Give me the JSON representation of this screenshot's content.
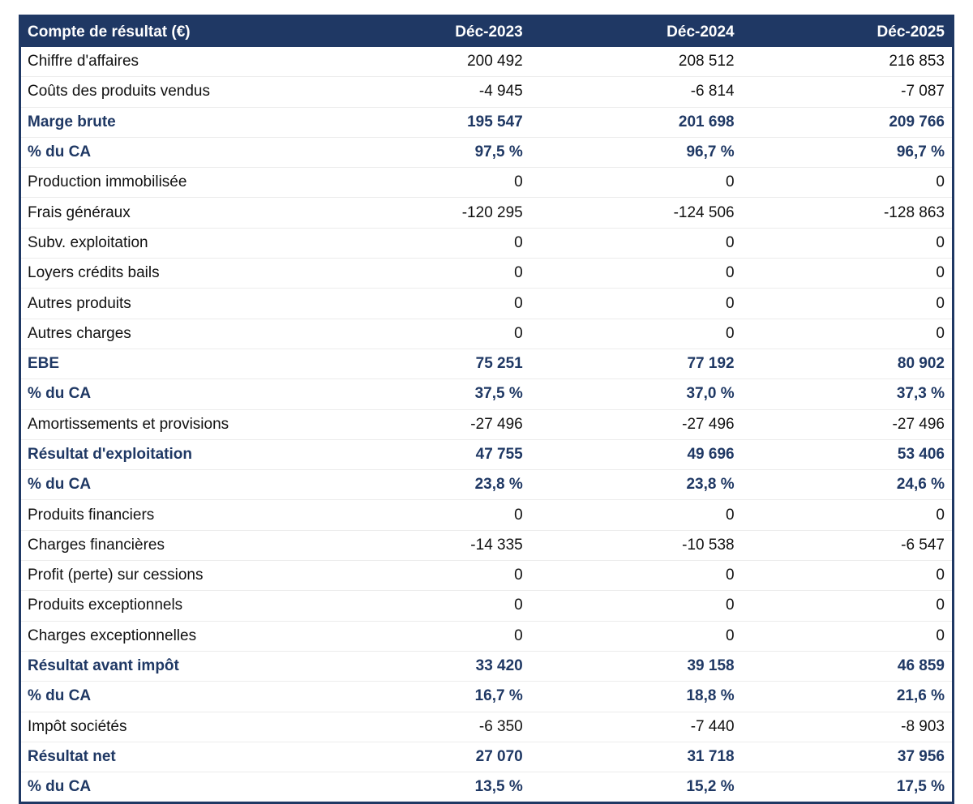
{
  "colors": {
    "header_bg": "#1F3864",
    "header_text": "#FFFFFF",
    "emphasis_text": "#1F3864",
    "body_text": "#111111",
    "table_border": "#1F3864"
  },
  "table": {
    "title": "Compte de résultat (€)",
    "columns": [
      "Déc-2023",
      "Déc-2024",
      "Déc-2025"
    ],
    "rows": [
      {
        "label": "Chiffre d'affaires",
        "values": [
          "200 492",
          "208 512",
          "216 853"
        ],
        "emphasis": false
      },
      {
        "label": "Coûts des produits vendus",
        "values": [
          "-4 945",
          "-6 814",
          "-7 087"
        ],
        "emphasis": false
      },
      {
        "label": "Marge brute",
        "values": [
          "195 547",
          "201 698",
          "209 766"
        ],
        "emphasis": true
      },
      {
        "label": "% du CA",
        "values": [
          "97,5 %",
          "96,7 %",
          "96,7 %"
        ],
        "emphasis": true
      },
      {
        "label": "Production immobilisée",
        "values": [
          "0",
          "0",
          "0"
        ],
        "emphasis": false
      },
      {
        "label": "Frais généraux",
        "values": [
          "-120 295",
          "-124 506",
          "-128 863"
        ],
        "emphasis": false
      },
      {
        "label": "Subv. exploitation",
        "values": [
          "0",
          "0",
          "0"
        ],
        "emphasis": false
      },
      {
        "label": "Loyers crédits bails",
        "values": [
          "0",
          "0",
          "0"
        ],
        "emphasis": false
      },
      {
        "label": "Autres produits",
        "values": [
          "0",
          "0",
          "0"
        ],
        "emphasis": false
      },
      {
        "label": "Autres charges",
        "values": [
          "0",
          "0",
          "0"
        ],
        "emphasis": false
      },
      {
        "label": "EBE",
        "values": [
          "75 251",
          "77 192",
          "80 902"
        ],
        "emphasis": true
      },
      {
        "label": "% du CA",
        "values": [
          "37,5 %",
          "37,0 %",
          "37,3 %"
        ],
        "emphasis": true
      },
      {
        "label": "Amortissements et provisions",
        "values": [
          "-27 496",
          "-27 496",
          "-27 496"
        ],
        "emphasis": false
      },
      {
        "label": "Résultat d'exploitation",
        "values": [
          "47 755",
          "49 696",
          "53 406"
        ],
        "emphasis": true
      },
      {
        "label": "% du CA",
        "values": [
          "23,8 %",
          "23,8 %",
          "24,6 %"
        ],
        "emphasis": true
      },
      {
        "label": "Produits financiers",
        "values": [
          "0",
          "0",
          "0"
        ],
        "emphasis": false
      },
      {
        "label": "Charges financières",
        "values": [
          "-14 335",
          "-10 538",
          "-6 547"
        ],
        "emphasis": false
      },
      {
        "label": "Profit (perte) sur cessions",
        "values": [
          "0",
          "0",
          "0"
        ],
        "emphasis": false
      },
      {
        "label": "Produits exceptionnels",
        "values": [
          "0",
          "0",
          "0"
        ],
        "emphasis": false
      },
      {
        "label": "Charges exceptionnelles",
        "values": [
          "0",
          "0",
          "0"
        ],
        "emphasis": false
      },
      {
        "label": "Résultat avant impôt",
        "values": [
          "33 420",
          "39 158",
          "46 859"
        ],
        "emphasis": true
      },
      {
        "label": "% du CA",
        "values": [
          "16,7 %",
          "18,8 %",
          "21,6 %"
        ],
        "emphasis": true
      },
      {
        "label": "Impôt sociétés",
        "values": [
          "-6 350",
          "-7 440",
          "-8 903"
        ],
        "emphasis": false
      },
      {
        "label": "Résultat net",
        "values": [
          "27 070",
          "31 718",
          "37 956"
        ],
        "emphasis": true
      },
      {
        "label": "% du CA",
        "values": [
          "13,5 %",
          "15,2 %",
          "17,5 %"
        ],
        "emphasis": true
      }
    ]
  },
  "chart_data": {
    "type": "table",
    "title": "Compte de résultat (€)",
    "columns": [
      "Déc-2023",
      "Déc-2024",
      "Déc-2025"
    ],
    "rows": [
      {
        "label": "Chiffre d'affaires",
        "values": [
          200492,
          208512,
          216853
        ]
      },
      {
        "label": "Coûts des produits vendus",
        "values": [
          -4945,
          -6814,
          -7087
        ]
      },
      {
        "label": "Marge brute",
        "values": [
          195547,
          201698,
          209766
        ]
      },
      {
        "label": "% du CA (marge brute)",
        "unit": "%",
        "values": [
          97.5,
          96.7,
          96.7
        ]
      },
      {
        "label": "Production immobilisée",
        "values": [
          0,
          0,
          0
        ]
      },
      {
        "label": "Frais généraux",
        "values": [
          -120295,
          -124506,
          -128863
        ]
      },
      {
        "label": "Subv. exploitation",
        "values": [
          0,
          0,
          0
        ]
      },
      {
        "label": "Loyers crédits bails",
        "values": [
          0,
          0,
          0
        ]
      },
      {
        "label": "Autres produits",
        "values": [
          0,
          0,
          0
        ]
      },
      {
        "label": "Autres charges",
        "values": [
          0,
          0,
          0
        ]
      },
      {
        "label": "EBE",
        "values": [
          75251,
          77192,
          80902
        ]
      },
      {
        "label": "% du CA (EBE)",
        "unit": "%",
        "values": [
          37.5,
          37.0,
          37.3
        ]
      },
      {
        "label": "Amortissements et provisions",
        "values": [
          -27496,
          -27496,
          -27496
        ]
      },
      {
        "label": "Résultat d'exploitation",
        "values": [
          47755,
          49696,
          53406
        ]
      },
      {
        "label": "% du CA (résultat d'exploitation)",
        "unit": "%",
        "values": [
          23.8,
          23.8,
          24.6
        ]
      },
      {
        "label": "Produits financiers",
        "values": [
          0,
          0,
          0
        ]
      },
      {
        "label": "Charges financières",
        "values": [
          -14335,
          -10538,
          -6547
        ]
      },
      {
        "label": "Profit (perte) sur cessions",
        "values": [
          0,
          0,
          0
        ]
      },
      {
        "label": "Produits exceptionnels",
        "values": [
          0,
          0,
          0
        ]
      },
      {
        "label": "Charges exceptionnelles",
        "values": [
          0,
          0,
          0
        ]
      },
      {
        "label": "Résultat avant impôt",
        "values": [
          33420,
          39158,
          46859
        ]
      },
      {
        "label": "% du CA (résultat avant impôt)",
        "unit": "%",
        "values": [
          16.7,
          18.8,
          21.6
        ]
      },
      {
        "label": "Impôt sociétés",
        "values": [
          -6350,
          -7440,
          -8903
        ]
      },
      {
        "label": "Résultat net",
        "values": [
          27070,
          31718,
          37956
        ]
      },
      {
        "label": "% du CA (résultat net)",
        "unit": "%",
        "values": [
          13.5,
          15.2,
          17.5
        ]
      }
    ]
  }
}
